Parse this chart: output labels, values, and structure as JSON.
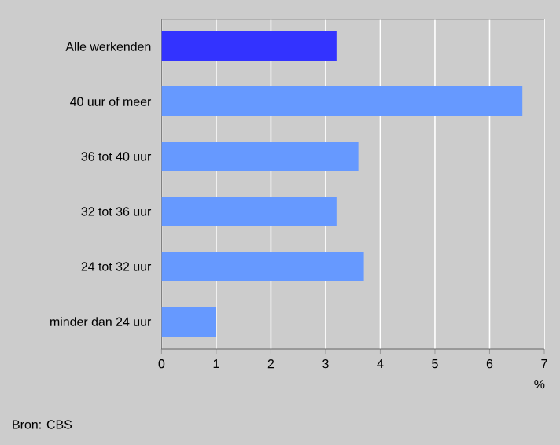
{
  "chart_data": {
    "type": "bar",
    "orientation": "horizontal",
    "categories": [
      "Alle werkenden",
      "40 uur of meer",
      "36 tot 40 uur",
      "32 tot 36 uur",
      "24 tot 32 uur",
      "minder dan 24 uur"
    ],
    "values": [
      3.2,
      6.6,
      3.6,
      3.2,
      3.7,
      1.0
    ],
    "colors": [
      "#3333ff",
      "#6699ff",
      "#6699ff",
      "#6699ff",
      "#6699ff",
      "#6699ff"
    ],
    "xlim": [
      0,
      7
    ],
    "xticks": [
      0,
      1,
      2,
      3,
      4,
      5,
      6,
      7
    ],
    "xlabel": "%",
    "grid": "x",
    "annotations": [
      "Bron: CBS"
    ]
  }
}
